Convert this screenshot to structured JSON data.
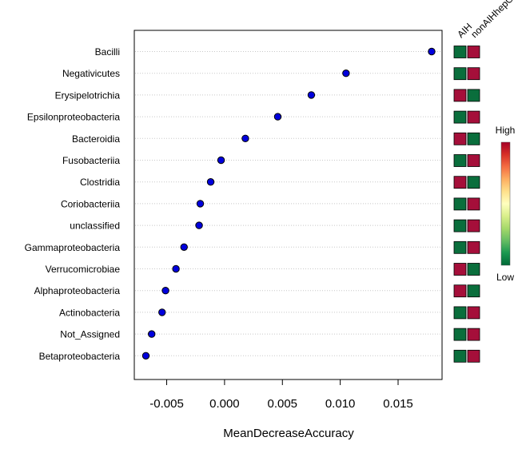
{
  "chart_data": {
    "type": "scatter",
    "xlabel": "MeanDecreaseAccuracy",
    "xlim": [
      -0.0078,
      0.0188
    ],
    "xticks": [
      -0.005,
      0.0,
      0.005,
      0.01,
      0.015
    ],
    "xtick_labels": [
      "-0.005",
      "0.000",
      "0.005",
      "0.010",
      "0.015"
    ],
    "grid": "horizontal-dotted",
    "point_color": "#0000dd",
    "categories": [
      "Bacilli",
      "Negativicutes",
      "Erysipelotrichia",
      "Epsilonproteobacteria",
      "Bacteroidia",
      "Fusobacteriia",
      "Clostridia",
      "Coriobacteriia",
      "unclassified",
      "Gammaproteobacteria",
      "Verrucomicrobiae",
      "Alphaproteobacteria",
      "Actinobacteria",
      "Not_Assigned",
      "Betaproteobacteria"
    ],
    "values": [
      0.0179,
      0.0105,
      0.0075,
      0.0046,
      0.0018,
      -0.0003,
      -0.0012,
      -0.0021,
      -0.0022,
      -0.0035,
      -0.0042,
      -0.0051,
      -0.0054,
      -0.0063,
      -0.0068
    ],
    "heatmap": {
      "columns": [
        "AIH",
        "nonAIHhepCon"
      ],
      "levels": [
        [
          "Low",
          "High"
        ],
        [
          "Low",
          "High"
        ],
        [
          "High",
          "Low"
        ],
        [
          "Low",
          "High"
        ],
        [
          "High",
          "Low"
        ],
        [
          "Low",
          "High"
        ],
        [
          "High",
          "Low"
        ],
        [
          "Low",
          "High"
        ],
        [
          "Low",
          "High"
        ],
        [
          "Low",
          "High"
        ],
        [
          "High",
          "Low"
        ],
        [
          "High",
          "Low"
        ],
        [
          "Low",
          "High"
        ],
        [
          "Low",
          "High"
        ],
        [
          "Low",
          "High"
        ]
      ],
      "colors": {
        "High": "#a50f3a",
        "Low": "#0a6e3c"
      }
    },
    "legend": {
      "high_label": "High",
      "low_label": "Low",
      "placement": "right",
      "gradient": [
        "#a50026",
        "#d73027",
        "#f46d43",
        "#fdae61",
        "#fee08b",
        "#ffffbf",
        "#d9ef8b",
        "#a6d96a",
        "#66bd63",
        "#1a9850",
        "#006837"
      ]
    }
  }
}
